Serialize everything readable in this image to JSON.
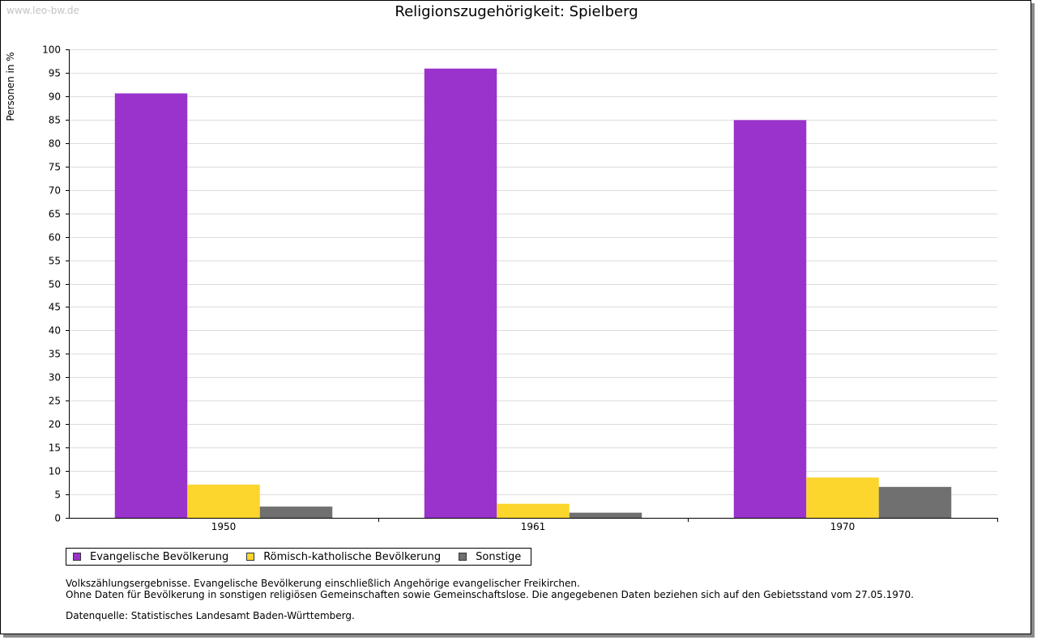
{
  "watermark": "www.leo-bw.de",
  "chart_data": {
    "type": "bar",
    "title": "Religionszugehörigkeit: Spielberg",
    "xlabel": "",
    "ylabel": "Personen in %",
    "ylim": [
      0,
      100
    ],
    "yticks": [
      0,
      5,
      10,
      15,
      20,
      25,
      30,
      35,
      40,
      45,
      50,
      55,
      60,
      65,
      70,
      75,
      80,
      85,
      90,
      95,
      100
    ],
    "categories": [
      "1950",
      "1961",
      "1970"
    ],
    "grid": true,
    "legend_position": "bottom",
    "series": [
      {
        "name": "Evangelische Bevölkerung",
        "color": "#9933cc",
        "values": [
          90.6,
          95.9,
          84.9
        ]
      },
      {
        "name": "Römisch-katholische Bevölkerung",
        "color": "#fcd52d",
        "values": [
          7.1,
          3.0,
          8.6
        ]
      },
      {
        "name": "Sonstige",
        "color": "#707070",
        "values": [
          2.4,
          1.1,
          6.6
        ]
      }
    ]
  },
  "notes": {
    "line1": "Volkszählungsergebnisse. Evangelische Bevölkerung einschließlich Angehörige evangelischer Freikirchen.",
    "line2": "Ohne Daten für Bevölkerung in sonstigen religiösen Gemeinschaften sowie Gemeinschaftslose. Die angegebenen Daten beziehen sich auf den Gebietsstand vom 27.05.1970.",
    "source": "Datenquelle: Statistisches Landesamt Baden-Württemberg."
  }
}
